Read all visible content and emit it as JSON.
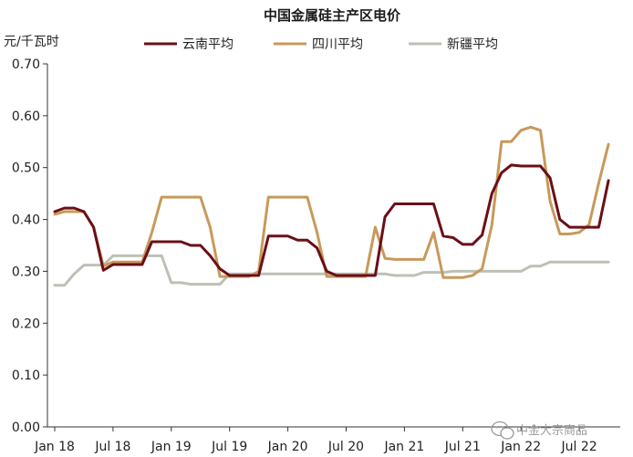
{
  "chart_data": {
    "type": "line",
    "title": "中国金属硅主产区电价",
    "ylabel": "元/千瓦时",
    "ylim": [
      0,
      0.7
    ],
    "yticks": [
      "0.00",
      "0.10",
      "0.20",
      "0.30",
      "0.40",
      "0.50",
      "0.60",
      "0.70"
    ],
    "xticks": [
      "Jan 18",
      "Jul 18",
      "Jan 19",
      "Jul 19",
      "Jan 20",
      "Jul 20",
      "Jan 21",
      "Jul 21",
      "Jan 22",
      "Jul 22"
    ],
    "x_start": "2018-01",
    "grid": false,
    "legend_position": "top",
    "series": [
      {
        "name": "云南平均",
        "color": "#6b0f16",
        "values": [
          0.415,
          0.422,
          0.422,
          0.415,
          0.385,
          0.302,
          0.313,
          0.313,
          0.313,
          0.313,
          0.357,
          0.357,
          0.357,
          0.357,
          0.35,
          0.35,
          0.33,
          0.305,
          0.292,
          0.292,
          0.292,
          0.292,
          0.368,
          0.368,
          0.368,
          0.36,
          0.36,
          0.345,
          0.3,
          0.292,
          0.292,
          0.292,
          0.292,
          0.292,
          0.405,
          0.43,
          0.43,
          0.43,
          0.43,
          0.43,
          0.368,
          0.365,
          0.352,
          0.352,
          0.37,
          0.45,
          0.49,
          0.505,
          0.503,
          0.503,
          0.503,
          0.48,
          0.4,
          0.385,
          0.385,
          0.385,
          0.385,
          0.475
        ]
      },
      {
        "name": "四川平均",
        "color": "#c8995a",
        "values": [
          0.41,
          0.415,
          0.415,
          0.415,
          0.385,
          0.31,
          0.318,
          0.318,
          0.318,
          0.318,
          0.375,
          0.443,
          0.443,
          0.443,
          0.443,
          0.443,
          0.385,
          0.29,
          0.29,
          0.29,
          0.29,
          0.3,
          0.443,
          0.443,
          0.443,
          0.443,
          0.443,
          0.375,
          0.29,
          0.29,
          0.29,
          0.29,
          0.29,
          0.385,
          0.325,
          0.323,
          0.323,
          0.323,
          0.323,
          0.375,
          0.288,
          0.288,
          0.288,
          0.292,
          0.305,
          0.39,
          0.55,
          0.55,
          0.572,
          0.578,
          0.572,
          0.435,
          0.372,
          0.372,
          0.375,
          0.39,
          0.47,
          0.545
        ]
      },
      {
        "name": "新疆平均",
        "color": "#bcc1b6",
        "values": [
          0.273,
          0.273,
          0.295,
          0.312,
          0.312,
          0.312,
          0.33,
          0.33,
          0.33,
          0.33,
          0.33,
          0.33,
          0.278,
          0.278,
          0.275,
          0.275,
          0.275,
          0.275,
          0.295,
          0.295,
          0.295,
          0.295,
          0.295,
          0.295,
          0.295,
          0.295,
          0.295,
          0.295,
          0.295,
          0.295,
          0.295,
          0.295,
          0.295,
          0.295,
          0.295,
          0.292,
          0.292,
          0.292,
          0.298,
          0.298,
          0.298,
          0.3,
          0.3,
          0.3,
          0.3,
          0.3,
          0.3,
          0.3,
          0.3,
          0.31,
          0.31,
          0.318,
          0.318,
          0.318,
          0.318,
          0.318,
          0.318,
          0.318
        ]
      }
    ]
  },
  "watermark": "中金大宗商品"
}
